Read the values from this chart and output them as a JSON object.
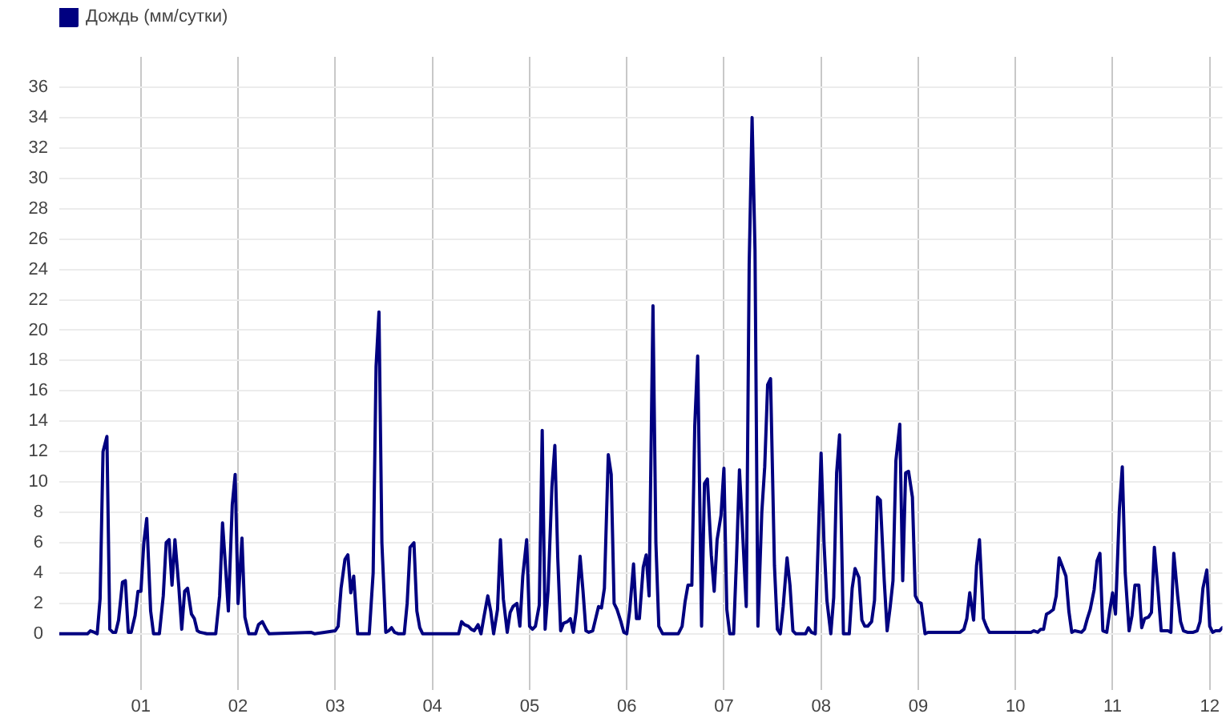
{
  "chart_data": {
    "type": "line",
    "legend": "top left",
    "grid": true,
    "xlim": [
      0.16,
      12.13
    ],
    "xticks": [
      {
        "value": 1,
        "label": "01"
      },
      {
        "value": 2,
        "label": "02"
      },
      {
        "value": 3,
        "label": "03"
      },
      {
        "value": 4,
        "label": "04"
      },
      {
        "value": 5,
        "label": "05"
      },
      {
        "value": 6,
        "label": "06"
      },
      {
        "value": 7,
        "label": "07"
      },
      {
        "value": 8,
        "label": "08"
      },
      {
        "value": 9,
        "label": "09"
      },
      {
        "value": 10,
        "label": "10"
      },
      {
        "value": 11,
        "label": "11"
      },
      {
        "value": 12,
        "label": "12"
      }
    ],
    "ylim": [
      -3.7,
      38
    ],
    "yticks": [
      0,
      2,
      4,
      6,
      8,
      10,
      12,
      14,
      16,
      18,
      20,
      22,
      24,
      26,
      28,
      30,
      32,
      34,
      36
    ],
    "x": [
      0.16,
      0.45,
      0.48,
      0.52,
      0.55,
      0.58,
      0.61,
      0.65,
      0.68,
      0.71,
      0.74,
      0.77,
      0.81,
      0.84,
      0.87,
      0.9,
      0.94,
      0.97,
      1,
      1.03,
      1.06,
      1.1,
      1.13,
      1.19,
      1.23,
      1.26,
      1.29,
      1.32,
      1.35,
      1.39,
      1.42,
      1.45,
      1.48,
      1.52,
      1.55,
      1.58,
      1.61,
      1.68,
      1.77,
      1.81,
      1.84,
      1.87,
      1.9,
      1.94,
      1.97,
      2,
      2.04,
      2.07,
      2.11,
      2.18,
      2.21,
      2.25,
      2.29,
      2.32,
      2.75,
      2.79,
      3,
      3.03,
      3.06,
      3.1,
      3.13,
      3.16,
      3.19,
      3.23,
      3.35,
      3.39,
      3.42,
      3.45,
      3.48,
      3.52,
      3.55,
      3.58,
      3.61,
      3.65,
      3.71,
      3.74,
      3.77,
      3.81,
      3.84,
      3.87,
      3.9,
      4.27,
      4.3,
      4.33,
      4.37,
      4.4,
      4.43,
      4.47,
      4.5,
      4.53,
      4.57,
      4.6,
      4.63,
      4.67,
      4.7,
      4.73,
      4.77,
      4.8,
      4.83,
      4.87,
      4.9,
      4.93,
      4.97,
      5,
      5.03,
      5.06,
      5.1,
      5.13,
      5.16,
      5.19,
      5.23,
      5.26,
      5.29,
      5.32,
      5.35,
      5.39,
      5.42,
      5.45,
      5.48,
      5.52,
      5.55,
      5.58,
      5.61,
      5.65,
      5.68,
      5.71,
      5.74,
      5.77,
      5.81,
      5.84,
      5.87,
      5.9,
      5.94,
      5.97,
      6,
      6.03,
      6.07,
      6.1,
      6.13,
      6.17,
      6.2,
      6.23,
      6.27,
      6.3,
      6.33,
      6.37,
      6.53,
      6.57,
      6.6,
      6.63,
      6.67,
      6.7,
      6.73,
      6.77,
      6.8,
      6.83,
      6.87,
      6.9,
      6.93,
      6.97,
      7,
      7.03,
      7.06,
      7.1,
      7.13,
      7.16,
      7.19,
      7.23,
      7.26,
      7.29,
      7.32,
      7.35,
      7.39,
      7.42,
      7.45,
      7.48,
      7.52,
      7.55,
      7.58,
      7.61,
      7.65,
      7.68,
      7.71,
      7.74,
      7.84,
      7.87,
      7.9,
      7.94,
      7.97,
      8,
      8.03,
      8.06,
      8.1,
      8.13,
      8.16,
      8.19,
      8.23,
      8.29,
      8.32,
      8.35,
      8.39,
      8.42,
      8.45,
      8.48,
      8.52,
      8.55,
      8.58,
      8.61,
      8.65,
      8.68,
      8.71,
      8.74,
      8.77,
      8.81,
      8.84,
      8.87,
      8.9,
      8.94,
      8.97,
      9,
      9.03,
      9.07,
      9.1,
      9.43,
      9.47,
      9.5,
      9.53,
      9.57,
      9.6,
      9.63,
      9.67,
      9.7,
      9.73,
      10.16,
      10.19,
      10.23,
      10.26,
      10.29,
      10.32,
      10.35,
      10.39,
      10.42,
      10.45,
      10.48,
      10.52,
      10.55,
      10.58,
      10.61,
      10.68,
      10.71,
      10.74,
      10.77,
      10.81,
      10.84,
      10.87,
      10.9,
      10.94,
      10.97,
      11,
      11.03,
      11.07,
      11.1,
      11.13,
      11.17,
      11.2,
      11.23,
      11.27,
      11.3,
      11.33,
      11.37,
      11.4,
      11.43,
      11.47,
      11.5,
      11.57,
      11.6,
      11.63,
      11.67,
      11.7,
      11.73,
      11.77,
      11.83,
      11.87,
      11.9,
      11.93,
      11.97,
      12,
      12.03,
      12.06,
      12.1,
      12.13
    ],
    "series": [
      {
        "name": "Дождь (мм/сутки)",
        "color": "#000080",
        "values": [
          0,
          0,
          0.2,
          0.1,
          0,
          2.3,
          12,
          13,
          0.3,
          0.1,
          0.1,
          0.9,
          3.4,
          3.5,
          0.1,
          0.1,
          1.2,
          2.8,
          2.8,
          6,
          7.6,
          1.5,
          0,
          0,
          2.5,
          6,
          6.2,
          3.2,
          6.2,
          3.1,
          0.3,
          2.8,
          3,
          1.3,
          1,
          0.2,
          0.1,
          0,
          0,
          2.5,
          7.3,
          4.5,
          1.5,
          8.5,
          10.5,
          2,
          6.3,
          1.1,
          0,
          0,
          0.6,
          0.8,
          0.3,
          0,
          0.1,
          0,
          0.2,
          0.5,
          3,
          4.9,
          5.2,
          2.7,
          3.8,
          0,
          0,
          4,
          17.6,
          21.2,
          6,
          0.1,
          0.2,
          0.4,
          0.1,
          0,
          0,
          2,
          5.7,
          6,
          1.5,
          0.4,
          0,
          0,
          0.8,
          0.6,
          0.5,
          0.3,
          0.2,
          0.6,
          0,
          1.1,
          2.5,
          1.5,
          0,
          1.6,
          6.2,
          2.3,
          0.1,
          1.4,
          1.8,
          2,
          0.5,
          3.8,
          6.2,
          0.5,
          0.3,
          0.5,
          1.9,
          13.4,
          0.3,
          2.8,
          9.7,
          12.4,
          5,
          0.2,
          0.7,
          0.8,
          1,
          0.1,
          1.5,
          5.1,
          2.8,
          0.2,
          0.1,
          0.2,
          1,
          1.8,
          1.7,
          3,
          11.8,
          10.5,
          2,
          1.6,
          0.8,
          0.1,
          0,
          1.5,
          4.6,
          1,
          1,
          4.4,
          5.2,
          2.5,
          21.6,
          6,
          0.5,
          0,
          0,
          0.5,
          2.1,
          3.2,
          3.2,
          13.7,
          18.3,
          0.5,
          9.9,
          10.2,
          5.2,
          2.8,
          6.2,
          7.8,
          10.9,
          1.6,
          0,
          0,
          5,
          10.8,
          7,
          1.8,
          24.3,
          34,
          25.3,
          0.5,
          8,
          11,
          16.4,
          16.8,
          4.5,
          0.3,
          0,
          1.8,
          5,
          3.2,
          0.2,
          0,
          0,
          0.4,
          0.1,
          0,
          6,
          11.9,
          6,
          2.2,
          0,
          2.4,
          10.6,
          13.1,
          0,
          0,
          3,
          4.3,
          3.7,
          0.9,
          0.5,
          0.5,
          0.8,
          2.2,
          9,
          8.8,
          3.5,
          0.2,
          1.7,
          3.5,
          11.4,
          13.8,
          3.5,
          10.6,
          10.7,
          9,
          2.5,
          2.1,
          2,
          0,
          0.1,
          0.1,
          0.3,
          1,
          2.7,
          0.9,
          4.5,
          6.2,
          1,
          0.5,
          0.1,
          0.1,
          0.2,
          0.1,
          0.3,
          0.3,
          1.3,
          1.4,
          1.6,
          2.5,
          5,
          4.5,
          3.8,
          1.5,
          0.1,
          0.2,
          0.1,
          0.3,
          1,
          1.6,
          2.9,
          4.8,
          5.3,
          0.2,
          0.1,
          1.5,
          2.7,
          1.3,
          8.2,
          11,
          4,
          0.2,
          1.2,
          3.2,
          3.2,
          0.4,
          1,
          1.1,
          1.4,
          5.7,
          2.7,
          0.2,
          0.2,
          0.1,
          5.3,
          2.5,
          0.8,
          0.2,
          0.1,
          0.1,
          0.2,
          0.8,
          3,
          4.2,
          0.5,
          0.1,
          0.2,
          0.2,
          0.4
        ]
      }
    ]
  }
}
